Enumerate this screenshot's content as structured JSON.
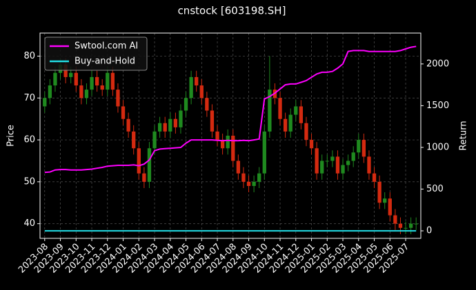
{
  "chart_data": {
    "type": "candlestick",
    "title": "cnstock [603198.SH]",
    "ylabel": "Price",
    "y2label": "Return",
    "categories": [
      "2023-08",
      null,
      null,
      "2023-09",
      null,
      null,
      "2023-10",
      null,
      null,
      "2023-11",
      null,
      null,
      "2023-12",
      null,
      null,
      "2024-01",
      null,
      null,
      "2024-02",
      null,
      null,
      "2024-03",
      null,
      null,
      "2024-04",
      null,
      null,
      "2024-05",
      null,
      null,
      "2024-06",
      null,
      null,
      "2024-07",
      null,
      null,
      "2024-08",
      null,
      null,
      "2024-09",
      null,
      null,
      "2024-10",
      null,
      null,
      "2024-11",
      null,
      null,
      "2024-12",
      null,
      null,
      "2025-01",
      null,
      null,
      "2025-02",
      null,
      null,
      "2025-03",
      null,
      null,
      "2025-04",
      null,
      null,
      "2025-05",
      null,
      null,
      "2025-06",
      null,
      null,
      "2025-07",
      null,
      null
    ],
    "open": [
      68,
      70,
      73,
      76,
      78,
      75,
      76,
      73,
      70,
      72,
      75,
      73,
      72,
      76,
      72,
      68,
      65,
      62,
      58,
      52,
      50,
      58,
      62,
      64,
      62,
      65,
      63,
      67,
      70,
      75,
      73,
      70,
      67,
      62,
      60,
      58,
      61,
      55,
      52,
      50,
      49,
      50,
      52,
      62,
      72,
      70,
      65,
      62,
      66,
      68,
      64,
      60,
      58,
      52,
      55,
      55,
      56,
      52,
      54,
      55,
      57,
      60,
      56,
      52,
      50,
      45,
      46,
      42,
      40,
      39,
      39,
      40
    ],
    "high": [
      71.5,
      74.5,
      77.5,
      79.5,
      79.5,
      77.5,
      77.5,
      74.5,
      73.5,
      76.5,
      76.5,
      74.5,
      77.5,
      77.5,
      73.5,
      69.5,
      66.5,
      63.5,
      59.5,
      53.5,
      59.5,
      63.5,
      65.5,
      65.5,
      66.5,
      66.5,
      68.5,
      71.5,
      76.5,
      76.5,
      74.5,
      71.5,
      68.5,
      63.5,
      61.5,
      62.5,
      62.5,
      56.5,
      53.5,
      51.5,
      51.5,
      53.5,
      63.5,
      80,
      73.5,
      71.5,
      66.5,
      67.5,
      69.5,
      69.5,
      65.5,
      61.5,
      59.5,
      56.5,
      56.5,
      57.5,
      57.5,
      55.5,
      56.5,
      58.5,
      61.5,
      61.5,
      57.5,
      53.5,
      51.5,
      47.5,
      47.5,
      43.5,
      41.5,
      40.5,
      41.5,
      41.5
    ],
    "low": [
      66.5,
      68.5,
      71.5,
      74.5,
      73.5,
      73.5,
      71.5,
      68.5,
      68.5,
      70.5,
      71.5,
      70.5,
      70.5,
      70.5,
      66.5,
      63.5,
      60.5,
      56.5,
      50.5,
      48.5,
      48.5,
      56.5,
      60.5,
      60.5,
      60.5,
      61.5,
      61.5,
      65.5,
      68.5,
      71.5,
      68.5,
      65.5,
      60.5,
      58.5,
      56.5,
      56.5,
      53.5,
      50.5,
      48.5,
      47.5,
      47.5,
      48.5,
      50.5,
      60.5,
      68.5,
      63.5,
      60.5,
      60.5,
      64.5,
      62.5,
      58.5,
      56.5,
      50.5,
      50.5,
      53.5,
      53.5,
      50.5,
      50.5,
      52.5,
      53.5,
      55.5,
      54.5,
      50.5,
      48.5,
      43.5,
      43.5,
      40.5,
      38.5,
      37.5,
      37.5,
      37.5,
      38.5
    ],
    "close": [
      70,
      73,
      76,
      78,
      75,
      76,
      73,
      70,
      72,
      75,
      73,
      72,
      76,
      72,
      68,
      65,
      62,
      58,
      52,
      50,
      58,
      62,
      64,
      62,
      65,
      63,
      67,
      70,
      75,
      73,
      70,
      67,
      62,
      60,
      58,
      61,
      55,
      52,
      50,
      49,
      50,
      52,
      62,
      72,
      70,
      65,
      62,
      66,
      68,
      64,
      60,
      58,
      52,
      55,
      55,
      56,
      52,
      54,
      55,
      57,
      60,
      56,
      52,
      50,
      45,
      46,
      42,
      40,
      39,
      39,
      40,
      40
    ],
    "up_color": "#1f8a1f",
    "down_color": "#d42a10",
    "series": [
      {
        "name": "Swtool.com AI",
        "color": "#ff00ff",
        "axis": "y2",
        "values": [
          700,
          705,
          730,
          735,
          735,
          730,
          730,
          730,
          735,
          740,
          750,
          760,
          775,
          780,
          785,
          785,
          785,
          790,
          780,
          800,
          850,
          960,
          980,
          985,
          990,
          995,
          1000,
          1050,
          1090,
          1090,
          1090,
          1090,
          1090,
          1085,
          1080,
          1085,
          1080,
          1080,
          1085,
          1080,
          1090,
          1100,
          1580,
          1610,
          1650,
          1700,
          1750,
          1760,
          1760,
          1780,
          1800,
          1840,
          1880,
          1900,
          1900,
          1910,
          1950,
          2000,
          2150,
          2160,
          2160,
          2160,
          2150,
          2150,
          2150,
          2150,
          2150,
          2150,
          2160,
          2180,
          2200,
          2210
        ]
      },
      {
        "name": "Buy-and-Hold",
        "color": "#22e0e8",
        "axis": "y2",
        "values": [
          0,
          0,
          0,
          0,
          0,
          0,
          0,
          0,
          0,
          0,
          0,
          0,
          0,
          0,
          0,
          0,
          0,
          0,
          0,
          0,
          0,
          0,
          0,
          0,
          0,
          0,
          0,
          0,
          0,
          0,
          0,
          0,
          0,
          0,
          0,
          0,
          0,
          0,
          0,
          0,
          0,
          0,
          0,
          0,
          0,
          0,
          0,
          0,
          0,
          0,
          0,
          0,
          0,
          0,
          0,
          0,
          0,
          0,
          0,
          0,
          0,
          0,
          0,
          0,
          0,
          0,
          0,
          0,
          0,
          0,
          0,
          0
        ]
      }
    ],
    "ylim": [
      36.5,
      85.5
    ],
    "yticks": [
      40,
      50,
      60,
      70,
      80
    ],
    "y2lim": [
      -90,
      2370
    ],
    "y2ticks": [
      0,
      500,
      1000,
      1500,
      2000
    ],
    "grid": true,
    "legend": "upper left"
  }
}
